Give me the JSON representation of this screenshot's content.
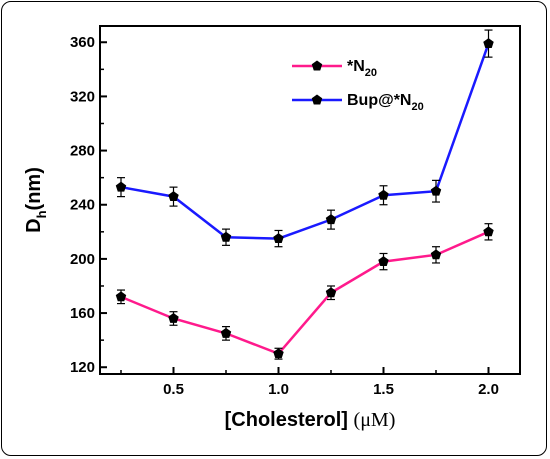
{
  "chart_data": {
    "type": "line",
    "xlabel_main": "[Cholesterol]",
    "xlabel_unit": "(μM)",
    "ylabel_main": "D",
    "ylabel_sub": "h",
    "ylabel_unit": "(nm)",
    "x": [
      0.25,
      0.5,
      0.75,
      1.0,
      1.25,
      1.5,
      1.75,
      2.0
    ],
    "xlim": [
      0.15,
      2.15
    ],
    "ylim": [
      115,
      372
    ],
    "xticks": [
      0.5,
      1.0,
      1.5,
      2.0
    ],
    "xtick_labels": [
      "0.5",
      "1.0",
      "1.5",
      "2.0"
    ],
    "yticks": [
      120,
      160,
      200,
      240,
      280,
      320,
      360
    ],
    "ytick_labels": [
      "120",
      "160",
      "200",
      "240",
      "280",
      "320",
      "360"
    ],
    "legend_position": "top-right",
    "series": [
      {
        "name_main": "*N",
        "name_sub": "20",
        "color": "#ff1a8c",
        "values": [
          172,
          156,
          145,
          130,
          175,
          198,
          203,
          220
        ],
        "errors": [
          5,
          5,
          5,
          4,
          5,
          6,
          6,
          6
        ]
      },
      {
        "name_main": "Bup@*N",
        "name_sub": "20",
        "color": "#1a1aff",
        "values": [
          253,
          246,
          216,
          215,
          229,
          247,
          250,
          359
        ],
        "errors": [
          7,
          7,
          6,
          6,
          7,
          7,
          8,
          10
        ]
      }
    ]
  }
}
